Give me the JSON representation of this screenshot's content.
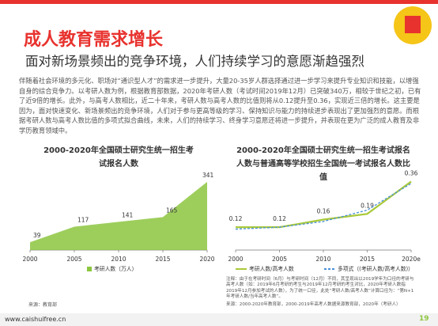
{
  "header": {
    "title": "成人教育需求增长",
    "subtitle": "面对新场景频出的竞争环境，人们持续学习的意愿渐趋强烈"
  },
  "body": "伴随着社会环境的多元化、职场对“通识型人才”的需求进一步提升，大量20-35岁人群选择通过进一步学习来提升专业知识和技能，以增强自身的综合竞争力。以考研人数为例，根据教育部数据，2020年考研人数（考试时间2019年12月）已突破340万，相较于世纪之初，已有了近9倍的增长。此外，与高考人数相比，近二十年来，考研人数与高考人数的比值则将从0.12提升至0.36，实现近三倍的增长。这主要是因为，面对快速变化、新场景频出的竞争环境，人们对于参与更高等级的学习、保持知识与能力的持续进步表现出了更加强烈的意愿。而根据考研人数与高考人数比值的多项式拟合曲线，未来，人们的持续学习、终身学习意愿还将进一步提升，并表现在更为广泛的成人教育及非学历教育领域中。",
  "chart_data": [
    {
      "type": "area",
      "title": "2000-2020年全国硕士研究生统一招生考试报名人数",
      "x": [
        2000,
        2005,
        2010,
        2015,
        2020
      ],
      "series": [
        {
          "name": "考研人数（万人）",
          "color": "#8cc63f",
          "values": [
            39,
            117,
            141,
            165,
            341
          ]
        }
      ],
      "xlim": [
        2000,
        2020
      ],
      "xticks": [
        2000,
        2005,
        2010,
        2015,
        2020
      ],
      "ylim": [
        0,
        380
      ],
      "source": "来源：教育部"
    },
    {
      "type": "line",
      "title": "2000-2020年全国硕士研究生统一招生考试报名人数与普通高等学校招生全国统一考试报名人数比值",
      "x": [
        2000,
        2005,
        2010,
        2015,
        2020
      ],
      "series": [
        {
          "name": "考研人数/高考人数",
          "color": "#a9c93a",
          "values": [
            0.12,
            0.12,
            0.16,
            0.19,
            0.36
          ],
          "labeled": true
        },
        {
          "name": "多项式（(考研人数/高考人数)）",
          "color": "#4a8fd8",
          "values": [
            0.11,
            0.12,
            0.15,
            0.21,
            0.35
          ],
          "dashed": true
        }
      ],
      "xlim": [
        2000,
        2020
      ],
      "xticks": [
        2000,
        2005,
        2010,
        2015,
        {
          "value": 2020,
          "label": "2020e"
        }
      ],
      "ylim": [
        0,
        0.42
      ],
      "notes": "注释：由于在考研时间（6月）与考研时间（12月）不同，其呈现出以2019学年为口径的考研与高考人数（如：2019年6月考研的考生与2019年12月考研的考生对比，2020年考研人数指2019年12月参加考试的人数），为了统一口径，此处“考研人数/高考人数”计算口径为：“第N+1年考研人数/当年高考人数”。",
      "source": "来源：2000-2020年教育部，2000-2019年高考人数据来源教育部，2020年（考研人）"
    }
  ],
  "footer": {
    "url": "www.caishuifree.cn",
    "page": "19"
  }
}
